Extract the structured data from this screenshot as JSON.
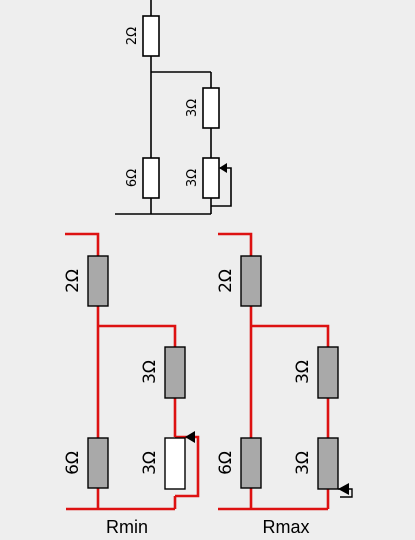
{
  "top_circuit": {
    "r_series": "2Ω",
    "r_parallel": "6Ω",
    "r_fixed": "3Ω",
    "r_rheostat": "3Ω"
  },
  "rmin_circuit": {
    "caption": "Rmin",
    "r_series": "2Ω",
    "r_parallel": "6Ω",
    "r_fixed": "3Ω",
    "r_rheostat": "3Ω"
  },
  "rmax_circuit": {
    "caption": "Rmax",
    "r_series": "2Ω",
    "r_parallel": "6Ω",
    "r_fixed": "3Ω",
    "r_rheostat": "3Ω"
  },
  "colors": {
    "wire": "#000000",
    "current_path": "#dd1111",
    "resistor_active": "#a9a9a9",
    "resistor_idle": "#ffffff"
  }
}
